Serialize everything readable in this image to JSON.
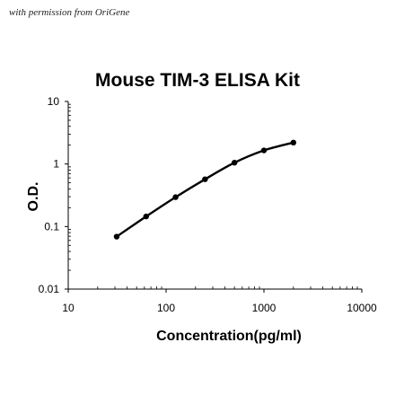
{
  "credit": "with permission from OriGene",
  "chart_data": {
    "type": "line",
    "title": "Mouse TIM-3 ELISA Kit",
    "xlabel": "Concentration(pg/ml)",
    "ylabel": "O.D.",
    "xscale": "log",
    "yscale": "log",
    "xlim": [
      10,
      10000
    ],
    "ylim": [
      0.01,
      10
    ],
    "x_ticks": [
      "10",
      "100",
      "1000",
      "10000"
    ],
    "y_ticks": [
      "0.01",
      "0.1",
      "1",
      "10"
    ],
    "grid": false,
    "legend": "none",
    "series": [
      {
        "color": "#000000",
        "x": [
          31.25,
          62.5,
          125,
          250,
          500,
          1000,
          2000
        ],
        "y": [
          0.069,
          0.145,
          0.295,
          0.57,
          1.05,
          1.65,
          2.2
        ]
      }
    ]
  }
}
